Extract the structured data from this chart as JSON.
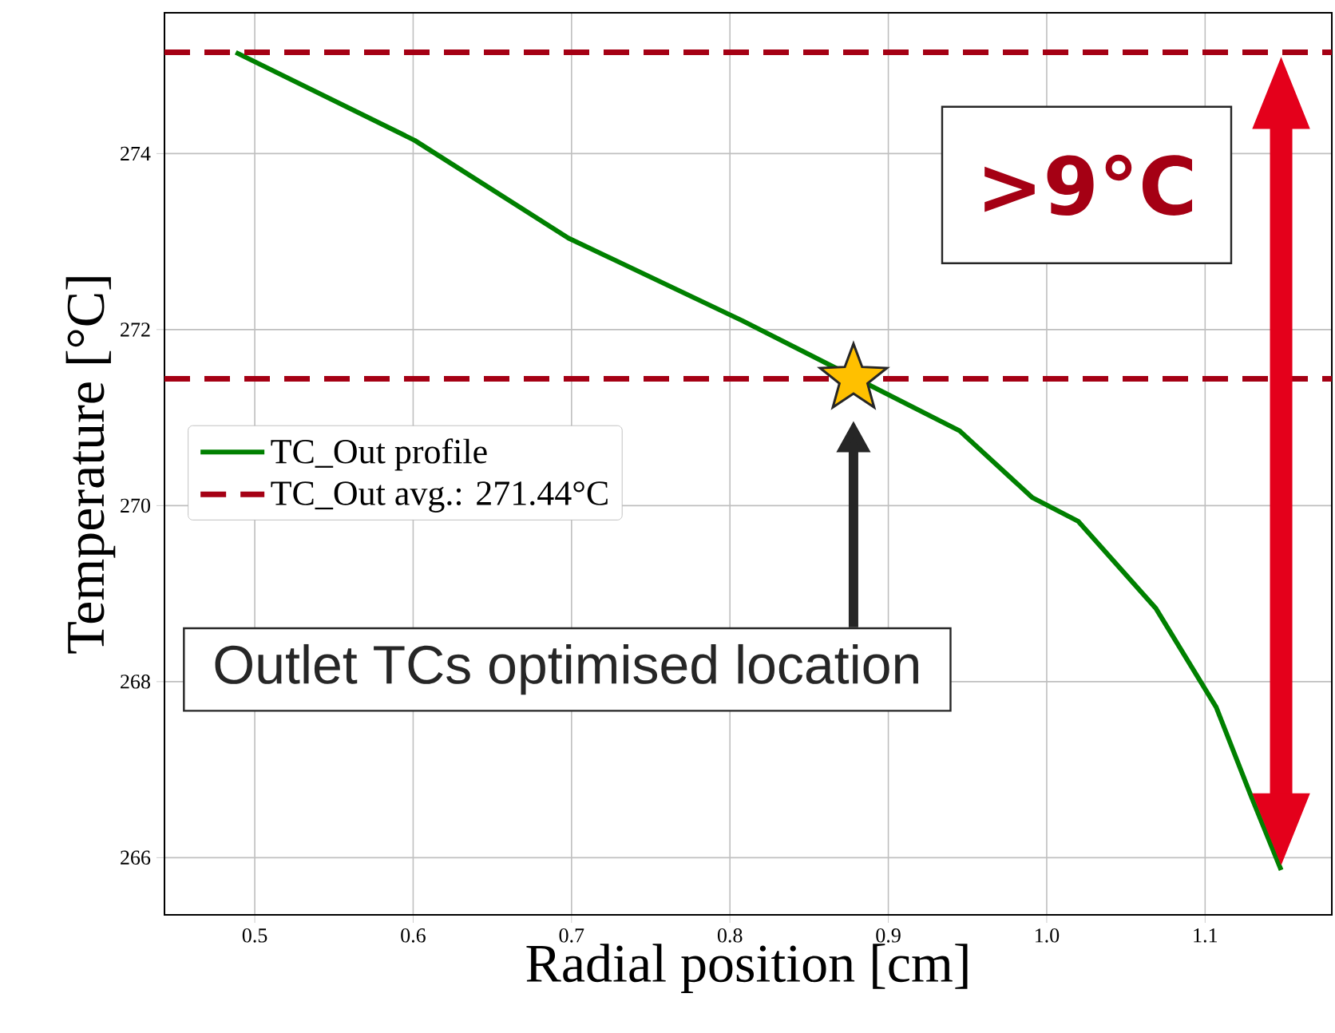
{
  "chart_data": {
    "type": "line",
    "xlabel": "Radial position [cm]",
    "ylabel": "Temperature [°C]",
    "xlim": [
      0.443,
      1.18
    ],
    "ylim": [
      265.35,
      275.6
    ],
    "xticks": [
      0.5,
      0.6,
      0.7,
      0.8,
      0.9,
      {
        "value": 1.0,
        "label": "1.0"
      },
      1.1
    ],
    "yticks": [
      266,
      268,
      270,
      272,
      274
    ],
    "grid": true,
    "legend": "left",
    "series": [
      {
        "name": "TC_Out profile",
        "color": "#008000",
        "line_style": "solid",
        "marker": "none",
        "x": [
          0.488,
          0.601,
          0.698,
          0.808,
          0.945,
          0.991,
          1.02,
          1.069,
          1.107,
          1.129,
          1.148
        ],
        "values": [
          275.15,
          274.15,
          273.04,
          272.1,
          270.85,
          270.09,
          269.82,
          268.83,
          267.71,
          266.7,
          265.86
        ]
      },
      {
        "type": "scatter",
        "color": "#ffc000",
        "marker": "star",
        "x": [
          0.878
        ],
        "values": [
          271.44
        ]
      }
    ],
    "ref_lines": [
      {
        "axis": "y",
        "value": 275.15,
        "color": "#a50014",
        "line_style": "dashed"
      },
      {
        "axis": "y",
        "value": 271.44,
        "label": "TC_Out avg.: 271.44°C",
        "color": "#a50014",
        "line_style": "dashed"
      }
    ],
    "annotations": [
      ">9°C",
      "Outlet TCs optimised location"
    ]
  }
}
